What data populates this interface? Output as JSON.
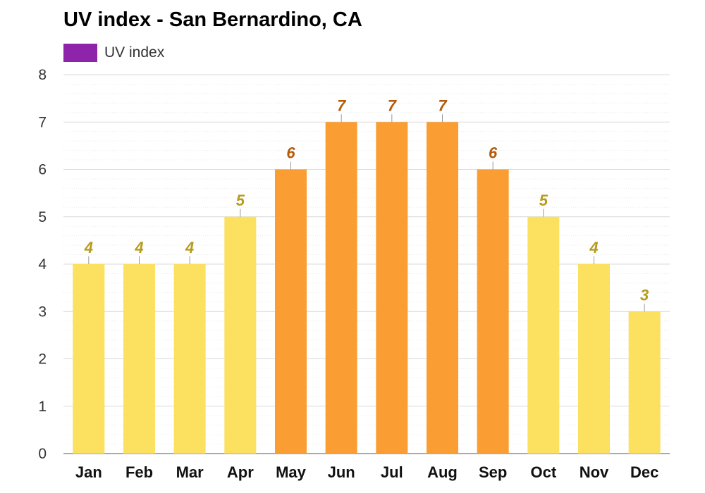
{
  "chart_data": {
    "type": "bar",
    "title": "UV index - San Bernardino, CA",
    "xlabel": "",
    "ylabel": "",
    "ylim": [
      0,
      8
    ],
    "yticks": [
      0,
      1,
      2,
      3,
      4,
      5,
      6,
      7,
      8
    ],
    "categories": [
      "Jan",
      "Feb",
      "Mar",
      "Apr",
      "May",
      "Jun",
      "Jul",
      "Aug",
      "Sep",
      "Oct",
      "Nov",
      "Dec"
    ],
    "series": [
      {
        "name": "UV index",
        "color": "#8e24aa",
        "values": [
          4,
          4,
          4,
          5,
          6,
          7,
          7,
          7,
          6,
          5,
          4,
          3
        ]
      }
    ],
    "legend": "top-left",
    "grid": true,
    "colors": {
      "moderate_bar": "#fce05f",
      "moderate_label": "#b79b1e",
      "high_bar": "#fa9e34",
      "high_label": "#b55a09",
      "high_threshold": 6
    }
  }
}
